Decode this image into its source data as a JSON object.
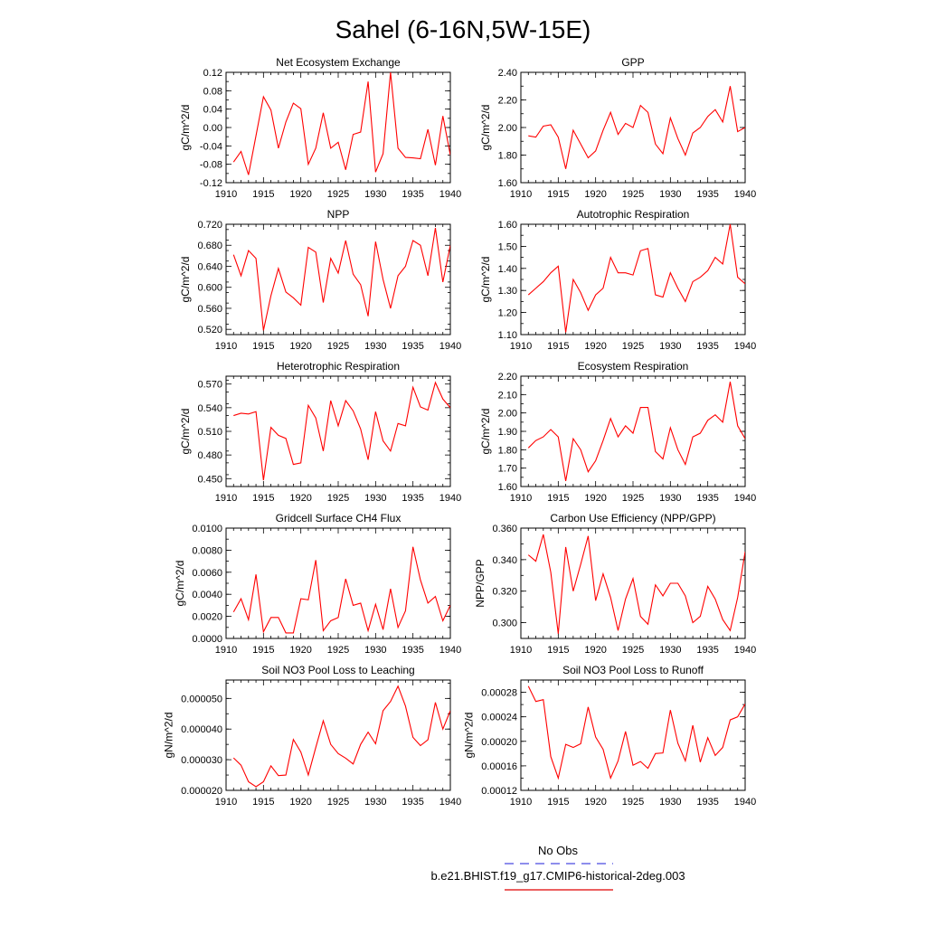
{
  "figure": {
    "title": "Sahel (6-16N,5W-15E)",
    "legend": [
      {
        "label": "No Obs",
        "color": "#4a4ae0",
        "style": "dashed"
      },
      {
        "label": "b.e21.BHIST.f19_g17.CMIP6-historical-2deg.003",
        "color": "#e00000",
        "style": "solid"
      }
    ],
    "line_color": "#ff0000"
  },
  "chart_data": [
    {
      "type": "line",
      "title": "Net Ecosystem Exchange",
      "ylabel": "gC/m^2/d",
      "xlim": [
        1910,
        1940
      ],
      "xticks": [
        1910,
        1915,
        1920,
        1925,
        1930,
        1935,
        1940
      ],
      "ylim": [
        -0.12,
        0.12
      ],
      "yticks": [
        -0.12,
        -0.08,
        -0.04,
        0.0,
        0.04,
        0.08,
        0.12
      ],
      "ytick_labels": [
        "-0.12",
        "-0.08",
        "-0.04",
        "0.00",
        "0.04",
        "0.08",
        "0.12"
      ],
      "x": [
        1911,
        1912,
        1913,
        1914,
        1915,
        1916,
        1917,
        1918,
        1919,
        1920,
        1921,
        1922,
        1923,
        1924,
        1925,
        1926,
        1927,
        1928,
        1929,
        1930,
        1931,
        1932,
        1933,
        1934,
        1935,
        1936,
        1937,
        1938,
        1939,
        1940
      ],
      "y": [
        -0.075,
        -0.052,
        -0.103,
        -0.018,
        0.067,
        0.038,
        -0.045,
        0.012,
        0.053,
        0.041,
        -0.08,
        -0.045,
        0.032,
        -0.045,
        -0.032,
        -0.092,
        -0.015,
        -0.01,
        0.1,
        -0.097,
        -0.057,
        0.12,
        -0.045,
        -0.065,
        -0.066,
        -0.068,
        -0.004,
        -0.082,
        0.025,
        -0.06
      ]
    },
    {
      "type": "line",
      "title": "GPP",
      "ylabel": "gC/m^2/d",
      "xlim": [
        1910,
        1940
      ],
      "xticks": [
        1910,
        1915,
        1920,
        1925,
        1930,
        1935,
        1940
      ],
      "ylim": [
        1.6,
        2.4
      ],
      "yticks": [
        1.6,
        1.8,
        2.0,
        2.2,
        2.4
      ],
      "ytick_labels": [
        "1.60",
        "1.80",
        "2.00",
        "2.20",
        "2.40"
      ],
      "x": [
        1911,
        1912,
        1913,
        1914,
        1915,
        1916,
        1917,
        1918,
        1919,
        1920,
        1921,
        1922,
        1923,
        1924,
        1925,
        1926,
        1927,
        1928,
        1929,
        1930,
        1931,
        1932,
        1933,
        1934,
        1935,
        1936,
        1937,
        1938,
        1939,
        1940
      ],
      "y": [
        1.94,
        1.93,
        2.01,
        2.02,
        1.93,
        1.7,
        1.98,
        1.88,
        1.78,
        1.83,
        1.98,
        2.11,
        1.95,
        2.03,
        2.0,
        2.16,
        2.11,
        1.88,
        1.81,
        2.07,
        1.92,
        1.8,
        1.96,
        2.0,
        2.08,
        2.13,
        2.04,
        2.3,
        1.97,
        2.0
      ]
    },
    {
      "type": "line",
      "title": "NPP",
      "ylabel": "gC/m^2/d",
      "xlim": [
        1910,
        1940
      ],
      "xticks": [
        1910,
        1915,
        1920,
        1925,
        1930,
        1935,
        1940
      ],
      "ylim": [
        0.51,
        0.72
      ],
      "yticks": [
        0.52,
        0.56,
        0.6,
        0.64,
        0.68,
        0.72
      ],
      "ytick_labels": [
        "0.520",
        "0.560",
        "0.600",
        "0.640",
        "0.680",
        "0.720"
      ],
      "x": [
        1911,
        1912,
        1913,
        1914,
        1915,
        1916,
        1917,
        1918,
        1919,
        1920,
        1921,
        1922,
        1923,
        1924,
        1925,
        1926,
        1927,
        1928,
        1929,
        1930,
        1931,
        1932,
        1933,
        1934,
        1935,
        1936,
        1937,
        1938,
        1939,
        1940
      ],
      "y": [
        0.662,
        0.622,
        0.67,
        0.655,
        0.518,
        0.584,
        0.636,
        0.591,
        0.58,
        0.566,
        0.676,
        0.667,
        0.571,
        0.655,
        0.627,
        0.689,
        0.625,
        0.605,
        0.545,
        0.687,
        0.615,
        0.56,
        0.622,
        0.64,
        0.689,
        0.68,
        0.622,
        0.713,
        0.61,
        0.68
      ]
    },
    {
      "type": "line",
      "title": "Autotrophic Respiration",
      "ylabel": "gC/m^2/d",
      "xlim": [
        1910,
        1940
      ],
      "xticks": [
        1910,
        1915,
        1920,
        1925,
        1930,
        1935,
        1940
      ],
      "ylim": [
        1.1,
        1.6
      ],
      "yticks": [
        1.1,
        1.2,
        1.3,
        1.4,
        1.5,
        1.6
      ],
      "ytick_labels": [
        "1.10",
        "1.20",
        "1.30",
        "1.40",
        "1.50",
        "1.60"
      ],
      "x": [
        1911,
        1912,
        1913,
        1914,
        1915,
        1916,
        1917,
        1918,
        1919,
        1920,
        1921,
        1922,
        1923,
        1924,
        1925,
        1926,
        1927,
        1928,
        1929,
        1930,
        1931,
        1932,
        1933,
        1934,
        1935,
        1936,
        1937,
        1938,
        1939,
        1940
      ],
      "y": [
        1.28,
        1.31,
        1.34,
        1.38,
        1.41,
        1.11,
        1.35,
        1.29,
        1.21,
        1.28,
        1.31,
        1.45,
        1.38,
        1.38,
        1.37,
        1.48,
        1.49,
        1.28,
        1.27,
        1.38,
        1.31,
        1.25,
        1.34,
        1.36,
        1.39,
        1.45,
        1.42,
        1.6,
        1.36,
        1.33
      ]
    },
    {
      "type": "line",
      "title": "Heterotrophic Respiration",
      "ylabel": "gC/m^2/d",
      "xlim": [
        1910,
        1940
      ],
      "xticks": [
        1910,
        1915,
        1920,
        1925,
        1930,
        1935,
        1940
      ],
      "ylim": [
        0.44,
        0.58
      ],
      "yticks": [
        0.45,
        0.48,
        0.51,
        0.54,
        0.57
      ],
      "ytick_labels": [
        "0.450",
        "0.480",
        "0.510",
        "0.540",
        "0.570"
      ],
      "x": [
        1911,
        1912,
        1913,
        1914,
        1915,
        1916,
        1917,
        1918,
        1919,
        1920,
        1921,
        1922,
        1923,
        1924,
        1925,
        1926,
        1927,
        1928,
        1929,
        1930,
        1931,
        1932,
        1933,
        1934,
        1935,
        1936,
        1937,
        1938,
        1939,
        1940
      ],
      "y": [
        0.53,
        0.533,
        0.532,
        0.535,
        0.448,
        0.515,
        0.505,
        0.501,
        0.468,
        0.47,
        0.543,
        0.527,
        0.485,
        0.549,
        0.517,
        0.549,
        0.536,
        0.513,
        0.474,
        0.535,
        0.498,
        0.485,
        0.52,
        0.517,
        0.566,
        0.541,
        0.537,
        0.572,
        0.551,
        0.54
      ]
    },
    {
      "type": "line",
      "title": "Ecosystem Respiration",
      "ylabel": "gC/m^2/d",
      "xlim": [
        1910,
        1940
      ],
      "xticks": [
        1910,
        1915,
        1920,
        1925,
        1930,
        1935,
        1940
      ],
      "ylim": [
        1.6,
        2.2
      ],
      "yticks": [
        1.6,
        1.7,
        1.8,
        1.9,
        2.0,
        2.1,
        2.2
      ],
      "ytick_labels": [
        "1.60",
        "1.70",
        "1.80",
        "1.90",
        "2.00",
        "2.10",
        "2.20"
      ],
      "x": [
        1911,
        1912,
        1913,
        1914,
        1915,
        1916,
        1917,
        1918,
        1919,
        1920,
        1921,
        1922,
        1923,
        1924,
        1925,
        1926,
        1927,
        1928,
        1929,
        1930,
        1931,
        1932,
        1933,
        1934,
        1935,
        1936,
        1937,
        1938,
        1939,
        1940
      ],
      "y": [
        1.81,
        1.85,
        1.87,
        1.91,
        1.87,
        1.63,
        1.86,
        1.8,
        1.68,
        1.74,
        1.85,
        1.97,
        1.87,
        1.93,
        1.89,
        2.03,
        2.03,
        1.79,
        1.75,
        1.92,
        1.8,
        1.72,
        1.87,
        1.89,
        1.96,
        1.99,
        1.95,
        2.17,
        1.93,
        1.86
      ]
    },
    {
      "type": "line",
      "title": "Gridcell Surface CH4 Flux",
      "ylabel": "gC/m^2/d",
      "xlim": [
        1910,
        1940
      ],
      "xticks": [
        1910,
        1915,
        1920,
        1925,
        1930,
        1935,
        1940
      ],
      "ylim": [
        0.0,
        0.01
      ],
      "yticks": [
        0.0,
        0.002,
        0.004,
        0.006,
        0.008,
        0.01
      ],
      "ytick_labels": [
        "0.0000",
        "0.0020",
        "0.0040",
        "0.0060",
        "0.0080",
        "0.0100"
      ],
      "x": [
        1911,
        1912,
        1913,
        1914,
        1915,
        1916,
        1917,
        1918,
        1919,
        1920,
        1921,
        1922,
        1923,
        1924,
        1925,
        1926,
        1927,
        1928,
        1929,
        1930,
        1931,
        1932,
        1933,
        1934,
        1935,
        1936,
        1937,
        1938,
        1939,
        1940
      ],
      "y": [
        0.0024,
        0.0036,
        0.0017,
        0.0058,
        0.0006,
        0.0019,
        0.0019,
        0.0005,
        0.0005,
        0.0036,
        0.0035,
        0.0071,
        0.0007,
        0.0016,
        0.0019,
        0.0054,
        0.003,
        0.0032,
        0.0007,
        0.0031,
        0.0008,
        0.0045,
        0.001,
        0.0025,
        0.0083,
        0.0053,
        0.0032,
        0.0038,
        0.0016,
        0.003
      ]
    },
    {
      "type": "line",
      "title": "Carbon Use Efficiency (NPP/GPP)",
      "ylabel": "NPP/GPP",
      "xlim": [
        1910,
        1940
      ],
      "xticks": [
        1910,
        1915,
        1920,
        1925,
        1930,
        1935,
        1940
      ],
      "ylim": [
        0.29,
        0.36
      ],
      "yticks": [
        0.3,
        0.32,
        0.34,
        0.36
      ],
      "ytick_labels": [
        "0.300",
        "0.320",
        "0.340",
        "0.360"
      ],
      "x": [
        1911,
        1912,
        1913,
        1914,
        1915,
        1916,
        1917,
        1918,
        1919,
        1920,
        1921,
        1922,
        1923,
        1924,
        1925,
        1926,
        1927,
        1928,
        1929,
        1930,
        1931,
        1932,
        1933,
        1934,
        1935,
        1936,
        1937,
        1938,
        1939,
        1940
      ],
      "y": [
        0.343,
        0.339,
        0.356,
        0.332,
        0.293,
        0.348,
        0.32,
        0.337,
        0.355,
        0.314,
        0.331,
        0.316,
        0.295,
        0.315,
        0.328,
        0.304,
        0.299,
        0.324,
        0.317,
        0.325,
        0.325,
        0.317,
        0.3,
        0.304,
        0.323,
        0.315,
        0.302,
        0.295,
        0.316,
        0.345
      ]
    },
    {
      "type": "line",
      "title": "Soil NO3 Pool Loss to Leaching",
      "ylabel": "gN/m^2/d",
      "xlim": [
        1910,
        1940
      ],
      "xticks": [
        1910,
        1915,
        1920,
        1925,
        1930,
        1935,
        1940
      ],
      "ylim": [
        2e-05,
        5.6e-05
      ],
      "yticks": [
        2e-05,
        3e-05,
        4e-05,
        5e-05
      ],
      "ytick_labels": [
        "0.000020",
        "0.000030",
        "0.000040",
        "0.000050"
      ],
      "x": [
        1911,
        1912,
        1913,
        1914,
        1915,
        1916,
        1917,
        1918,
        1919,
        1920,
        1921,
        1922,
        1923,
        1924,
        1925,
        1926,
        1927,
        1928,
        1929,
        1930,
        1931,
        1932,
        1933,
        1934,
        1935,
        1936,
        1937,
        1938,
        1939,
        1940
      ],
      "y": [
        3.06e-05,
        2.82e-05,
        2.28e-05,
        2.12e-05,
        2.28e-05,
        2.8e-05,
        2.48e-05,
        2.5e-05,
        3.66e-05,
        3.25e-05,
        2.5e-05,
        3.4e-05,
        4.27e-05,
        3.5e-05,
        3.2e-05,
        3.05e-05,
        2.86e-05,
        3.5e-05,
        3.9e-05,
        3.52e-05,
        4.6e-05,
        4.9e-05,
        5.4e-05,
        4.75e-05,
        3.73e-05,
        3.46e-05,
        3.65e-05,
        4.87e-05,
        4e-05,
        4.6e-05
      ]
    },
    {
      "type": "line",
      "title": "Soil NO3 Pool Loss to Runoff",
      "ylabel": "gN/m^2/d",
      "xlim": [
        1910,
        1940
      ],
      "xticks": [
        1910,
        1915,
        1920,
        1925,
        1930,
        1935,
        1940
      ],
      "ylim": [
        0.00012,
        0.0003
      ],
      "yticks": [
        0.00012,
        0.00016,
        0.0002,
        0.00024,
        0.00028
      ],
      "ytick_labels": [
        "0.00012",
        "0.00016",
        "0.00020",
        "0.00024",
        "0.00028"
      ],
      "x": [
        1911,
        1912,
        1913,
        1914,
        1915,
        1916,
        1917,
        1918,
        1919,
        1920,
        1921,
        1922,
        1923,
        1924,
        1925,
        1926,
        1927,
        1928,
        1929,
        1930,
        1931,
        1932,
        1933,
        1934,
        1935,
        1936,
        1937,
        1938,
        1939,
        1940
      ],
      "y": [
        0.00029,
        0.000265,
        0.000268,
        0.000175,
        0.00014,
        0.000195,
        0.00019,
        0.000196,
        0.000256,
        0.000207,
        0.000187,
        0.00014,
        0.000168,
        0.000216,
        0.000161,
        0.000167,
        0.000156,
        0.00018,
        0.000181,
        0.000251,
        0.000197,
        0.000168,
        0.000226,
        0.000166,
        0.000206,
        0.000177,
        0.00019,
        0.000235,
        0.00024,
        0.000261
      ]
    }
  ]
}
